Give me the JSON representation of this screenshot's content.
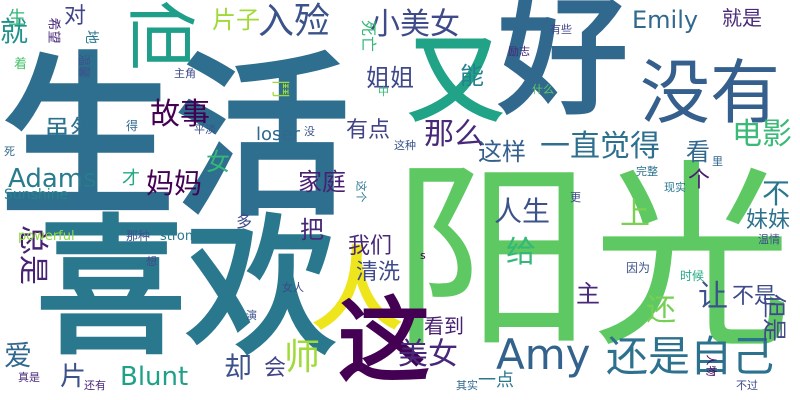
{
  "words": [
    {
      "text": "生活",
      "color": "#2e6e8e"
    },
    {
      "text": "阳光",
      "color": "#5ec962"
    },
    {
      "text": "喜欢",
      "color": "#2a788e"
    },
    {
      "text": "好",
      "color": "#31688e"
    },
    {
      "text": "没有",
      "color": "#355f8d"
    },
    {
      "text": "又",
      "color": "#20a386"
    },
    {
      "text": "人",
      "color": "#eee51c"
    },
    {
      "text": "这",
      "color": "#440154"
    },
    {
      "text": "但",
      "color": "#1f9e89"
    },
    {
      "text": "Amy",
      "color": "#33638d"
    },
    {
      "text": "还是自己",
      "color": "#2c728e"
    },
    {
      "text": "入殓",
      "color": "#3b528b"
    },
    {
      "text": "片子",
      "color": "#a0da39"
    },
    {
      "text": "小美女",
      "color": "#3e4a89"
    },
    {
      "text": "Emily",
      "color": "#31688e"
    },
    {
      "text": "就是",
      "color": "#482878"
    },
    {
      "text": "对",
      "color": "#414487"
    },
    {
      "text": "就",
      "color": "#21918c"
    },
    {
      "text": "生",
      "color": "#35b779"
    },
    {
      "text": "希望",
      "color": "#482878"
    },
    {
      "text": "地",
      "color": "#2a788e"
    },
    {
      "text": "温馨",
      "color": "#3b528b"
    },
    {
      "text": "着",
      "color": "#48c16e"
    },
    {
      "text": "能",
      "color": "#26828e"
    },
    {
      "text": "姐姐",
      "color": "#3e4a89"
    },
    {
      "text": "故事",
      "color": "#440154"
    },
    {
      "text": "那么",
      "color": "#482878"
    },
    {
      "text": "这样",
      "color": "#355f8d"
    },
    {
      "text": "一直觉得",
      "color": "#2d708e"
    },
    {
      "text": "电影",
      "color": "#3aba76"
    },
    {
      "text": "看",
      "color": "#31688e"
    },
    {
      "text": "虽然",
      "color": "#2c728e"
    },
    {
      "text": "有点",
      "color": "#414487"
    },
    {
      "text": "女",
      "color": "#35b779"
    },
    {
      "text": "Adams",
      "color": "#287c8e"
    },
    {
      "text": "妈妈",
      "color": "#440154"
    },
    {
      "text": "家庭",
      "color": "#482173"
    },
    {
      "text": "人生",
      "color": "#3b528b"
    },
    {
      "text": "不",
      "color": "#2a788e"
    },
    {
      "text": "上",
      "color": "#7ad151"
    },
    {
      "text": "妹妹",
      "color": "#2c728e"
    },
    {
      "text": "个",
      "color": "#481f70"
    },
    {
      "text": "loser",
      "color": "#31688e"
    },
    {
      "text": "把",
      "color": "#482878"
    },
    {
      "text": "我们",
      "color": "#482878"
    },
    {
      "text": "清洗",
      "color": "#3e4a89"
    },
    {
      "text": "给",
      "color": "#35b779"
    },
    {
      "text": "让",
      "color": "#3b528b"
    },
    {
      "text": "不是",
      "color": "#3e4a89"
    },
    {
      "text": "主",
      "color": "#482878"
    },
    {
      "text": "还",
      "color": "#75d054"
    },
    {
      "text": "看到",
      "color": "#481f70"
    },
    {
      "text": "总是",
      "color": "#482173"
    },
    {
      "text": "爱",
      "color": "#31688e"
    },
    {
      "text": "片",
      "color": "#3b528b"
    },
    {
      "text": "师",
      "color": "#a0da39"
    },
    {
      "text": "Blunt",
      "color": "#1fa188"
    },
    {
      "text": "却",
      "color": "#3b528b"
    },
    {
      "text": "会",
      "color": "#414487"
    },
    {
      "text": "美女",
      "color": "#482878"
    },
    {
      "text": "一点",
      "color": "#2a788e"
    },
    {
      "text": "但是",
      "color": "#3e4a89"
    },
    {
      "text": "时候",
      "color": "#22a884"
    },
    {
      "text": "因为",
      "color": "#3b528b"
    },
    {
      "text": "才",
      "color": "#22a884"
    },
    {
      "text": "Sunshine",
      "color": "#26828e"
    },
    {
      "text": "powerful",
      "color": "#8fd744"
    },
    {
      "text": "那种",
      "color": "#3b528b"
    },
    {
      "text": "strong",
      "color": "#2a788e"
    },
    {
      "text": "温情",
      "color": "#3b528b"
    },
    {
      "text": "里",
      "color": "#31688e"
    },
    {
      "text": "完整",
      "color": "#2c728e"
    },
    {
      "text": "现实",
      "color": "#2a788e"
    },
    {
      "text": "更",
      "color": "#3e4a89"
    },
    {
      "text": "这种",
      "color": "#3b528b"
    },
    {
      "text": "平淡",
      "color": "#3b528b"
    },
    {
      "text": "没",
      "color": "#3b528b"
    },
    {
      "text": "主角",
      "color": "#3e4a89"
    },
    {
      "text": "有些",
      "color": "#414487"
    },
    {
      "text": "励志",
      "color": "#482878"
    },
    {
      "text": "什么",
      "color": "#5ec962"
    },
    {
      "text": "中",
      "color": "#35b779"
    },
    {
      "text": "死亡",
      "color": "#35b779"
    },
    {
      "text": "得",
      "color": "#31688e"
    },
    {
      "text": "死",
      "color": "#31688e"
    },
    {
      "text": "多",
      "color": "#3e4a89"
    },
    {
      "text": "这个",
      "color": "#2a788e"
    },
    {
      "text": "s",
      "color": "#440154"
    },
    {
      "text": "想",
      "color": "#3e4a89"
    },
    {
      "text": "女人",
      "color": "#3e4a89"
    },
    {
      "text": "演",
      "color": "#3b528b"
    },
    {
      "text": "人物",
      "color": "#440154"
    },
    {
      "text": "不过",
      "color": "#3e4a89"
    },
    {
      "text": "真是",
      "color": "#482878"
    },
    {
      "text": "还有",
      "color": "#482878"
    },
    {
      "text": "其实",
      "color": "#31688e"
    },
    {
      "text": "鬥",
      "color": "#a0da39"
    }
  ]
}
